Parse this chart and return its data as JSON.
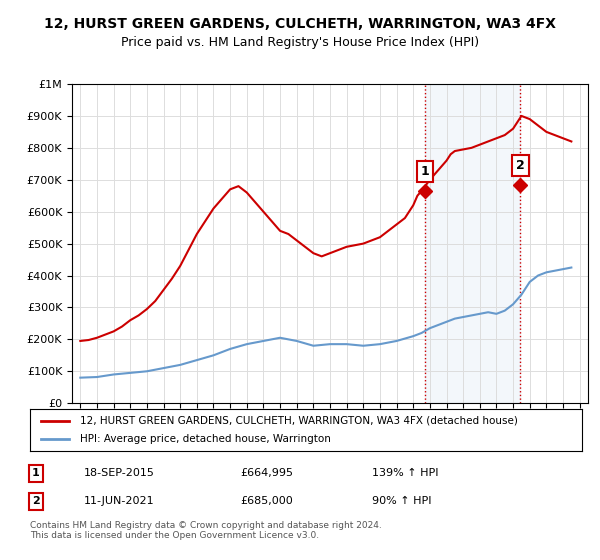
{
  "title": "12, HURST GREEN GARDENS, CULCHETH, WARRINGTON, WA3 4FX",
  "subtitle": "Price paid vs. HM Land Registry's House Price Index (HPI)",
  "legend_label_red": "12, HURST GREEN GARDENS, CULCHETH, WARRINGTON, WA3 4FX (detached house)",
  "legend_label_blue": "HPI: Average price, detached house, Warrington",
  "sale1_label": "1",
  "sale1_date": "18-SEP-2015",
  "sale1_price": "£664,995",
  "sale1_hpi": "139% ↑ HPI",
  "sale2_label": "2",
  "sale2_date": "11-JUN-2021",
  "sale2_price": "£685,000",
  "sale2_hpi": "90% ↑ HPI",
  "footer": "Contains HM Land Registry data © Crown copyright and database right 2024.\nThis data is licensed under the Open Government Licence v3.0.",
  "red_color": "#cc0000",
  "blue_color": "#6699cc",
  "sale_marker_color": "#cc0000",
  "vline_color": "#cc0000",
  "background_color": "#ffffff",
  "ylim": [
    0,
    1000000
  ],
  "hpi_x": [
    1995,
    1996,
    1997,
    1998,
    1999,
    2000,
    2001,
    2002,
    2003,
    2004,
    2005,
    2006,
    2007,
    2008,
    2009,
    2010,
    2011,
    2012,
    2013,
    2014,
    2015,
    2015.5,
    2016,
    2016.5,
    2017,
    2017.5,
    2018,
    2018.5,
    2019,
    2019.5,
    2020,
    2020.5,
    2021,
    2021.5,
    2022,
    2022.5,
    2023,
    2023.5,
    2024,
    2024.5
  ],
  "hpi_y": [
    80000,
    82000,
    90000,
    95000,
    100000,
    110000,
    120000,
    135000,
    150000,
    170000,
    185000,
    195000,
    205000,
    195000,
    180000,
    185000,
    185000,
    180000,
    185000,
    195000,
    210000,
    220000,
    235000,
    245000,
    255000,
    265000,
    270000,
    275000,
    280000,
    285000,
    280000,
    290000,
    310000,
    340000,
    380000,
    400000,
    410000,
    415000,
    420000,
    425000
  ],
  "red_x": [
    1995,
    1995.5,
    1996,
    1996.5,
    1997,
    1997.5,
    1998,
    1998.5,
    1999,
    1999.5,
    2000,
    2000.5,
    2001,
    2001.5,
    2002,
    2002.5,
    2003,
    2003.5,
    2004,
    2004.5,
    2005,
    2005.5,
    2006,
    2006.5,
    2007,
    2007.5,
    2008,
    2008.5,
    2009,
    2009.5,
    2010,
    2010.5,
    2011,
    2011.5,
    2012,
    2012.5,
    2013,
    2013.5,
    2014,
    2014.5,
    2015,
    2015.25,
    2015.5,
    2016,
    2016.5,
    2017,
    2017.25,
    2017.5,
    2018,
    2018.5,
    2019,
    2019.5,
    2020,
    2020.5,
    2021,
    2021.25,
    2021.5,
    2022,
    2022.5,
    2023,
    2023.5,
    2024,
    2024.5
  ],
  "red_y": [
    195000,
    198000,
    205000,
    215000,
    225000,
    240000,
    260000,
    275000,
    295000,
    320000,
    355000,
    390000,
    430000,
    480000,
    530000,
    570000,
    610000,
    640000,
    670000,
    680000,
    660000,
    630000,
    600000,
    570000,
    540000,
    530000,
    510000,
    490000,
    470000,
    460000,
    470000,
    480000,
    490000,
    495000,
    500000,
    510000,
    520000,
    540000,
    560000,
    580000,
    620000,
    650000,
    665000,
    700000,
    730000,
    760000,
    780000,
    790000,
    795000,
    800000,
    810000,
    820000,
    830000,
    840000,
    860000,
    880000,
    900000,
    890000,
    870000,
    850000,
    840000,
    830000,
    820000
  ],
  "sale1_x": 2015.72,
  "sale1_y": 664995,
  "sale2_x": 2021.44,
  "sale2_y": 685000,
  "xlim": [
    1994.5,
    2025.5
  ],
  "xticks": [
    1995,
    1996,
    1997,
    1998,
    1999,
    2000,
    2001,
    2002,
    2003,
    2004,
    2005,
    2006,
    2007,
    2008,
    2009,
    2010,
    2011,
    2012,
    2013,
    2014,
    2015,
    2016,
    2017,
    2018,
    2019,
    2020,
    2021,
    2022,
    2023,
    2024,
    2025
  ]
}
